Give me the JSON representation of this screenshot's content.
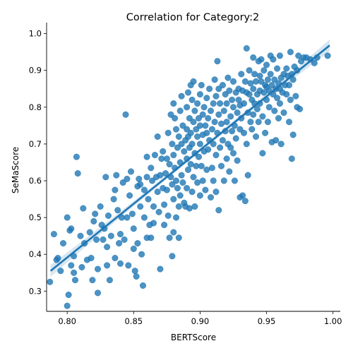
{
  "chart_data": {
    "type": "scatter",
    "title": "Correlation for Category:2",
    "xlabel": "BERTScore",
    "ylabel": "SeMaScore",
    "xlim": [
      0.7845,
      1.0055
    ],
    "ylim": [
      0.245,
      1.03
    ],
    "x_ticks": [
      "0.80",
      "0.85",
      "0.90",
      "0.95",
      "1.00"
    ],
    "x_tick_values": [
      0.8,
      0.85,
      0.9,
      0.95,
      1.0
    ],
    "y_ticks": [
      "0.3",
      "0.4",
      "0.5",
      "0.6",
      "0.7",
      "0.8",
      "0.9",
      "1.0"
    ],
    "y_tick_values": [
      0.3,
      0.4,
      0.5,
      0.6,
      0.7,
      0.8,
      0.9,
      1.0
    ],
    "grid": false,
    "marker_color": "#1f77b4",
    "regression": {
      "x": [
        0.7875,
        0.9975
      ],
      "y": [
        0.355,
        0.968
      ],
      "ci_halfwidth": 0.016
    },
    "points": [
      [
        0.787,
        0.325
      ],
      [
        0.79,
        0.455
      ],
      [
        0.792,
        0.385
      ],
      [
        0.793,
        0.39
      ],
      [
        0.795,
        0.355
      ],
      [
        0.797,
        0.43
      ],
      [
        0.8,
        0.5
      ],
      [
        0.8,
        0.26
      ],
      [
        0.801,
        0.29
      ],
      [
        0.802,
        0.465
      ],
      [
        0.803,
        0.47
      ],
      [
        0.803,
        0.37
      ],
      [
        0.805,
        0.395
      ],
      [
        0.805,
        0.35
      ],
      [
        0.806,
        0.33
      ],
      [
        0.807,
        0.665
      ],
      [
        0.808,
        0.62
      ],
      [
        0.81,
        0.45
      ],
      [
        0.811,
        0.365
      ],
      [
        0.812,
        0.525
      ],
      [
        0.813,
        0.43
      ],
      [
        0.815,
        0.385
      ],
      [
        0.817,
        0.46
      ],
      [
        0.818,
        0.39
      ],
      [
        0.819,
        0.33
      ],
      [
        0.82,
        0.49
      ],
      [
        0.821,
        0.51
      ],
      [
        0.822,
        0.44
      ],
      [
        0.823,
        0.36
      ],
      [
        0.823,
        0.295
      ],
      [
        0.825,
        0.53
      ],
      [
        0.826,
        0.48
      ],
      [
        0.827,
        0.44
      ],
      [
        0.828,
        0.47
      ],
      [
        0.829,
        0.61
      ],
      [
        0.83,
        0.42
      ],
      [
        0.83,
        0.37
      ],
      [
        0.831,
        0.505
      ],
      [
        0.832,
        0.33
      ],
      [
        0.833,
        0.45
      ],
      [
        0.835,
        0.55
      ],
      [
        0.836,
        0.575
      ],
      [
        0.836,
        0.39
      ],
      [
        0.837,
        0.615
      ],
      [
        0.838,
        0.52
      ],
      [
        0.839,
        0.43
      ],
      [
        0.84,
        0.375
      ],
      [
        0.84,
        0.455
      ],
      [
        0.841,
        0.5
      ],
      [
        0.842,
        0.595
      ],
      [
        0.843,
        0.44
      ],
      [
        0.844,
        0.78
      ],
      [
        0.845,
        0.605
      ],
      [
        0.845,
        0.5
      ],
      [
        0.846,
        0.37
      ],
      [
        0.847,
        0.56
      ],
      [
        0.848,
        0.625
      ],
      [
        0.849,
        0.51
      ],
      [
        0.85,
        0.47
      ],
      [
        0.85,
        0.415
      ],
      [
        0.851,
        0.355
      ],
      [
        0.852,
        0.34
      ],
      [
        0.853,
        0.585
      ],
      [
        0.853,
        0.43
      ],
      [
        0.854,
        0.605
      ],
      [
        0.855,
        0.59
      ],
      [
        0.855,
        0.53
      ],
      [
        0.856,
        0.4
      ],
      [
        0.857,
        0.315
      ],
      [
        0.858,
        0.575
      ],
      [
        0.858,
        0.5
      ],
      [
        0.86,
        0.665
      ],
      [
        0.86,
        0.61
      ],
      [
        0.86,
        0.445
      ],
      [
        0.861,
        0.55
      ],
      [
        0.862,
        0.48
      ],
      [
        0.863,
        0.635
      ],
      [
        0.863,
        0.445
      ],
      [
        0.864,
        0.6
      ],
      [
        0.865,
        0.53
      ],
      [
        0.865,
        0.485
      ],
      [
        0.866,
        0.67
      ],
      [
        0.867,
        0.61
      ],
      [
        0.868,
        0.72
      ],
      [
        0.868,
        0.57
      ],
      [
        0.869,
        0.515
      ],
      [
        0.87,
        0.36
      ],
      [
        0.87,
        0.615
      ],
      [
        0.871,
        0.66
      ],
      [
        0.872,
        0.68
      ],
      [
        0.872,
        0.58
      ],
      [
        0.873,
        0.535
      ],
      [
        0.873,
        0.48
      ],
      [
        0.874,
        0.62
      ],
      [
        0.875,
        0.575
      ],
      [
        0.875,
        0.66
      ],
      [
        0.876,
        0.73
      ],
      [
        0.876,
        0.505
      ],
      [
        0.877,
        0.645
      ],
      [
        0.877,
        0.445
      ],
      [
        0.878,
        0.78
      ],
      [
        0.878,
        0.61
      ],
      [
        0.879,
        0.7
      ],
      [
        0.879,
        0.59
      ],
      [
        0.879,
        0.395
      ],
      [
        0.88,
        0.81
      ],
      [
        0.88,
        0.67
      ],
      [
        0.88,
        0.55
      ],
      [
        0.88,
        0.46
      ],
      [
        0.881,
        0.77
      ],
      [
        0.881,
        0.635
      ],
      [
        0.882,
        0.74
      ],
      [
        0.882,
        0.6
      ],
      [
        0.882,
        0.5
      ],
      [
        0.883,
        0.69
      ],
      [
        0.883,
        0.58
      ],
      [
        0.884,
        0.72
      ],
      [
        0.884,
        0.53
      ],
      [
        0.884,
        0.445
      ],
      [
        0.885,
        0.79
      ],
      [
        0.885,
        0.65
      ],
      [
        0.885,
        0.56
      ],
      [
        0.886,
        0.83
      ],
      [
        0.886,
        0.7
      ],
      [
        0.886,
        0.615
      ],
      [
        0.887,
        0.75
      ],
      [
        0.887,
        0.595
      ],
      [
        0.888,
        0.68
      ],
      [
        0.888,
        0.54
      ],
      [
        0.889,
        0.71
      ],
      [
        0.889,
        0.53
      ],
      [
        0.89,
        0.8
      ],
      [
        0.89,
        0.74
      ],
      [
        0.89,
        0.66
      ],
      [
        0.89,
        0.58
      ],
      [
        0.891,
        0.84
      ],
      [
        0.891,
        0.72
      ],
      [
        0.891,
        0.63
      ],
      [
        0.892,
        0.77
      ],
      [
        0.892,
        0.69
      ],
      [
        0.892,
        0.525
      ],
      [
        0.893,
        0.86
      ],
      [
        0.893,
        0.73
      ],
      [
        0.893,
        0.645
      ],
      [
        0.894,
        0.82
      ],
      [
        0.894,
        0.7
      ],
      [
        0.894,
        0.57
      ],
      [
        0.895,
        0.87
      ],
      [
        0.895,
        0.76
      ],
      [
        0.895,
        0.61
      ],
      [
        0.896,
        0.79
      ],
      [
        0.896,
        0.675
      ],
      [
        0.896,
        0.53
      ],
      [
        0.897,
        0.74
      ],
      [
        0.897,
        0.64
      ],
      [
        0.898,
        0.81
      ],
      [
        0.898,
        0.72
      ],
      [
        0.898,
        0.595
      ],
      [
        0.899,
        0.77
      ],
      [
        0.899,
        0.665
      ],
      [
        0.9,
        0.835
      ],
      [
        0.9,
        0.75
      ],
      [
        0.9,
        0.7
      ],
      [
        0.9,
        0.56
      ],
      [
        0.901,
        0.86
      ],
      [
        0.901,
        0.64
      ],
      [
        0.902,
        0.78
      ],
      [
        0.902,
        0.725
      ],
      [
        0.902,
        0.6
      ],
      [
        0.903,
        0.8
      ],
      [
        0.903,
        0.68
      ],
      [
        0.904,
        0.75
      ],
      [
        0.904,
        0.575
      ],
      [
        0.905,
        0.825
      ],
      [
        0.905,
        0.73
      ],
      [
        0.905,
        0.63
      ],
      [
        0.906,
        0.77
      ],
      [
        0.906,
        0.685
      ],
      [
        0.907,
        0.85
      ],
      [
        0.907,
        0.71
      ],
      [
        0.908,
        0.79
      ],
      [
        0.908,
        0.555
      ],
      [
        0.909,
        0.74
      ],
      [
        0.909,
        0.635
      ],
      [
        0.91,
        0.81
      ],
      [
        0.91,
        0.7
      ],
      [
        0.91,
        0.6
      ],
      [
        0.911,
        0.875
      ],
      [
        0.911,
        0.76
      ],
      [
        0.912,
        0.83
      ],
      [
        0.912,
        0.67
      ],
      [
        0.912,
        0.57
      ],
      [
        0.913,
        0.925
      ],
      [
        0.913,
        0.73
      ],
      [
        0.914,
        0.85
      ],
      [
        0.914,
        0.78
      ],
      [
        0.914,
        0.52
      ],
      [
        0.915,
        0.81
      ],
      [
        0.915,
        0.69
      ],
      [
        0.916,
        0.755
      ],
      [
        0.916,
        0.64
      ],
      [
        0.917,
        0.86
      ],
      [
        0.917,
        0.71
      ],
      [
        0.918,
        0.79
      ],
      [
        0.918,
        0.6
      ],
      [
        0.919,
        0.835
      ],
      [
        0.919,
        0.735
      ],
      [
        0.92,
        0.81
      ],
      [
        0.92,
        0.76
      ],
      [
        0.92,
        0.66
      ],
      [
        0.921,
        0.88
      ],
      [
        0.921,
        0.7
      ],
      [
        0.922,
        0.845
      ],
      [
        0.922,
        0.625
      ],
      [
        0.923,
        0.775
      ],
      [
        0.923,
        0.69
      ],
      [
        0.924,
        0.82
      ],
      [
        0.924,
        0.735
      ],
      [
        0.925,
        0.87
      ],
      [
        0.925,
        0.8
      ],
      [
        0.925,
        0.675
      ],
      [
        0.926,
        0.75
      ],
      [
        0.926,
        0.6
      ],
      [
        0.927,
        0.84
      ],
      [
        0.927,
        0.715
      ],
      [
        0.928,
        0.785
      ],
      [
        0.928,
        0.655
      ],
      [
        0.929,
        0.85
      ],
      [
        0.929,
        0.82
      ],
      [
        0.93,
        0.805
      ],
      [
        0.93,
        0.74
      ],
      [
        0.93,
        0.555
      ],
      [
        0.931,
        0.89
      ],
      [
        0.931,
        0.77
      ],
      [
        0.932,
        0.845
      ],
      [
        0.932,
        0.56
      ],
      [
        0.933,
        0.81
      ],
      [
        0.933,
        0.73
      ],
      [
        0.934,
        0.87
      ],
      [
        0.934,
        0.545
      ],
      [
        0.935,
        0.96
      ],
      [
        0.935,
        0.84
      ],
      [
        0.935,
        0.7
      ],
      [
        0.936,
        0.785
      ],
      [
        0.936,
        0.615
      ],
      [
        0.937,
        0.9
      ],
      [
        0.937,
        0.835
      ],
      [
        0.938,
        0.865
      ],
      [
        0.938,
        0.76
      ],
      [
        0.939,
        0.82
      ],
      [
        0.939,
        0.74
      ],
      [
        0.94,
        0.935
      ],
      [
        0.94,
        0.85
      ],
      [
        0.94,
        0.78
      ],
      [
        0.941,
        0.89
      ],
      [
        0.941,
        0.81
      ],
      [
        0.942,
        0.87
      ],
      [
        0.942,
        0.72
      ],
      [
        0.943,
        0.835
      ],
      [
        0.943,
        0.795
      ],
      [
        0.944,
        0.925
      ],
      [
        0.944,
        0.76
      ],
      [
        0.945,
        0.885
      ],
      [
        0.945,
        0.845
      ],
      [
        0.945,
        0.81
      ],
      [
        0.946,
        0.93
      ],
      [
        0.946,
        0.87
      ],
      [
        0.947,
        0.775
      ],
      [
        0.947,
        0.675
      ],
      [
        0.948,
        0.9
      ],
      [
        0.948,
        0.84
      ],
      [
        0.949,
        0.86
      ],
      [
        0.949,
        0.73
      ],
      [
        0.95,
        0.915
      ],
      [
        0.95,
        0.855
      ],
      [
        0.95,
        0.82
      ],
      [
        0.951,
        0.875
      ],
      [
        0.951,
        0.76
      ],
      [
        0.952,
        0.845
      ],
      [
        0.952,
        0.8
      ],
      [
        0.953,
        0.94
      ],
      [
        0.953,
        0.89
      ],
      [
        0.954,
        0.86
      ],
      [
        0.954,
        0.705
      ],
      [
        0.955,
        0.93
      ],
      [
        0.955,
        0.835
      ],
      [
        0.956,
        0.875
      ],
      [
        0.956,
        0.79
      ],
      [
        0.957,
        0.85
      ],
      [
        0.957,
        0.71
      ],
      [
        0.958,
        0.905
      ],
      [
        0.958,
        0.825
      ],
      [
        0.959,
        0.865
      ],
      [
        0.959,
        0.77
      ],
      [
        0.96,
        0.94
      ],
      [
        0.96,
        0.85
      ],
      [
        0.96,
        0.81
      ],
      [
        0.961,
        0.88
      ],
      [
        0.961,
        0.7
      ],
      [
        0.962,
        0.84
      ],
      [
        0.963,
        0.89
      ],
      [
        0.963,
        0.785
      ],
      [
        0.964,
        0.86
      ],
      [
        0.965,
        0.905
      ],
      [
        0.965,
        0.835
      ],
      [
        0.966,
        0.885
      ],
      [
        0.967,
        0.86
      ],
      [
        0.967,
        0.76
      ],
      [
        0.968,
        0.95
      ],
      [
        0.968,
        0.82
      ],
      [
        0.969,
        0.89
      ],
      [
        0.969,
        0.66
      ],
      [
        0.97,
        0.875
      ],
      [
        0.97,
        0.725
      ],
      [
        0.971,
        0.91
      ],
      [
        0.972,
        0.83
      ],
      [
        0.973,
        0.9
      ],
      [
        0.973,
        0.8
      ],
      [
        0.974,
        0.94
      ],
      [
        0.975,
        0.795
      ],
      [
        0.976,
        0.925
      ],
      [
        0.978,
        0.935
      ],
      [
        0.98,
        0.935
      ],
      [
        0.983,
        0.93
      ],
      [
        0.986,
        0.92
      ],
      [
        0.988,
        0.935
      ],
      [
        0.996,
        0.94
      ]
    ]
  }
}
